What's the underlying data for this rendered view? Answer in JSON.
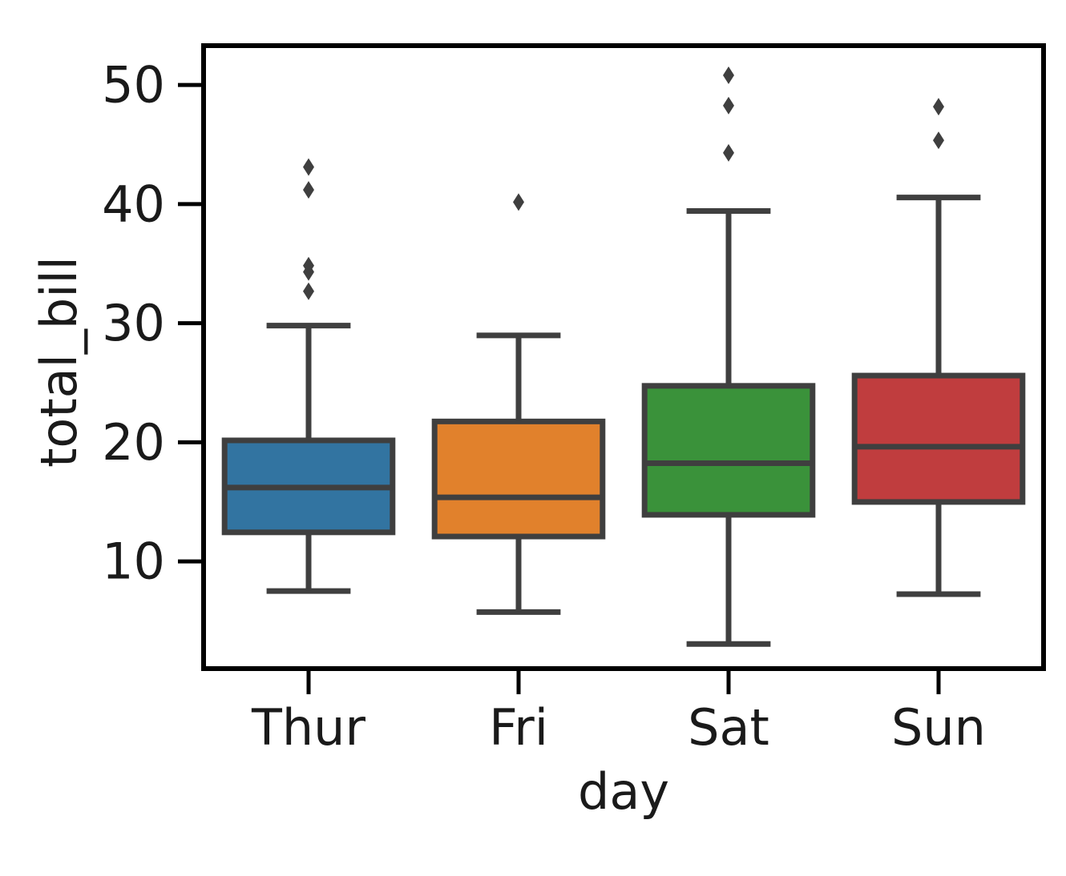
{
  "chart_data": {
    "type": "box",
    "title": "",
    "xlabel": "day",
    "ylabel": "total_bill",
    "categories": [
      "Thur",
      "Fri",
      "Sat",
      "Sun"
    ],
    "ylim": [
      1.0,
      53.3
    ],
    "yticks": [
      10,
      20,
      30,
      40,
      50
    ],
    "grid": false,
    "legend": "none",
    "boxes": [
      {
        "category": "Thur",
        "color": "#3274a1",
        "whisker_low": 7.51,
        "q1": 12.44,
        "median": 16.2,
        "q3": 20.16,
        "whisker_high": 29.8,
        "outliers": [
          32.68,
          34.3,
          34.83,
          41.19,
          43.11
        ]
      },
      {
        "category": "Fri",
        "color": "#e1812c",
        "whisker_low": 5.75,
        "q1": 12.09,
        "median": 15.38,
        "q3": 21.75,
        "whisker_high": 28.97,
        "outliers": [
          40.17
        ]
      },
      {
        "category": "Sat",
        "color": "#3a923a",
        "whisker_low": 3.07,
        "q1": 13.91,
        "median": 18.24,
        "q3": 24.74,
        "whisker_high": 39.42,
        "outliers": [
          44.3,
          48.27,
          50.81
        ]
      },
      {
        "category": "Sun",
        "color": "#c03d3e",
        "whisker_low": 7.25,
        "q1": 14.99,
        "median": 19.63,
        "q3": 25.6,
        "whisker_high": 40.55,
        "outliers": [
          45.35,
          48.17
        ]
      }
    ]
  }
}
